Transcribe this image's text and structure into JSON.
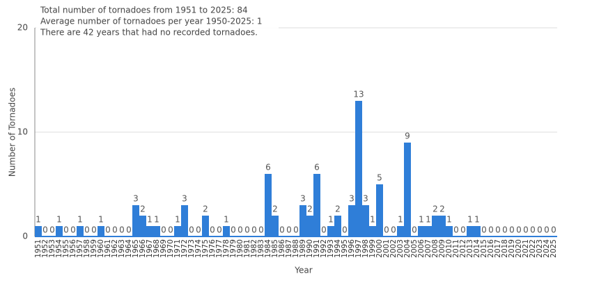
{
  "chart_data": {
    "type": "bar",
    "annotations": [
      "Total number of tornadoes from 1951 to 2025: 84",
      "Average number of tornadoes per year 1950-2025: 1",
      "There are 42 years that had no recorded tornadoes."
    ],
    "x_label": "Year",
    "y_label": "Number of Tornadoes",
    "categories": [
      "1951",
      "1952",
      "1953",
      "1954",
      "1955",
      "1956",
      "1957",
      "1958",
      "1959",
      "1960",
      "1961",
      "1962",
      "1963",
      "1964",
      "1965",
      "1966",
      "1967",
      "1968",
      "1969",
      "1970",
      "1971",
      "1972",
      "1973",
      "1974",
      "1975",
      "1976",
      "1977",
      "1978",
      "1979",
      "1980",
      "1981",
      "1982",
      "1983",
      "1984",
      "1985",
      "1986",
      "1987",
      "1988",
      "1989",
      "1990",
      "1991",
      "1992",
      "1993",
      "1994",
      "1995",
      "1996",
      "1997",
      "1998",
      "1999",
      "2000",
      "2001",
      "2002",
      "2003",
      "2004",
      "2005",
      "2006",
      "2007",
      "2008",
      "2009",
      "2010",
      "2011",
      "2012",
      "2013",
      "2014",
      "2015",
      "2016",
      "2017",
      "2018",
      "2019",
      "2020",
      "2021",
      "2022",
      "2023",
      "2024",
      "2025"
    ],
    "values": [
      1,
      0,
      0,
      1,
      0,
      0,
      1,
      0,
      0,
      1,
      0,
      0,
      0,
      0,
      3,
      2,
      1,
      1,
      0,
      0,
      1,
      3,
      0,
      0,
      2,
      0,
      0,
      1,
      0,
      0,
      0,
      0,
      0,
      6,
      2,
      0,
      0,
      0,
      3,
      2,
      6,
      0,
      1,
      2,
      0,
      3,
      13,
      3,
      1,
      5,
      0,
      0,
      1,
      9,
      0,
      1,
      1,
      2,
      2,
      1,
      0,
      0,
      1,
      1,
      0,
      0,
      0,
      0,
      0,
      0,
      0,
      0,
      0,
      0,
      0
    ],
    "color": "#2f7ed8",
    "ylim": [
      0,
      20
    ],
    "yticks": [
      0,
      10,
      20
    ],
    "grid": true
  }
}
